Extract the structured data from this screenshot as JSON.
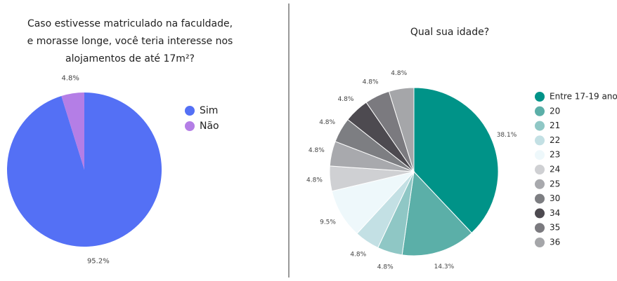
{
  "chart_data": [
    {
      "type": "pie",
      "title": "Caso estivesse matriculado na faculdade, e morasse longe, você teria interesse nos alojamentos de até 17m²?",
      "categories": [
        "Sim",
        "Não"
      ],
      "values": [
        95.2,
        4.8
      ],
      "value_labels": [
        "95.2%",
        "4.8%"
      ],
      "colors": [
        "#5470f5",
        "#b47ee6"
      ]
    },
    {
      "type": "pie",
      "title": "Qual sua idade?",
      "categories": [
        "Entre 17-19 anos",
        "20",
        "21",
        "22",
        "23",
        "24",
        "25",
        "30",
        "34",
        "35",
        "36"
      ],
      "values": [
        38.1,
        14.3,
        4.8,
        4.8,
        9.5,
        4.8,
        4.8,
        4.8,
        4.8,
        4.8,
        4.8
      ],
      "value_labels": [
        "38.1%",
        "14.3%",
        "4.8%",
        "4.8%",
        "9.5%",
        "4.8%",
        "4.8%",
        "4.8%",
        "4.8%",
        "4.8%",
        "4.8%"
      ],
      "colors": [
        "#009388",
        "#5bafa8",
        "#8fc7c5",
        "#c3e0e4",
        "#eef8fb",
        "#cfd0d3",
        "#a8a9ad",
        "#7d7e82",
        "#4d4a50",
        "#7b7a7f",
        "#a5a6a9"
      ]
    }
  ]
}
